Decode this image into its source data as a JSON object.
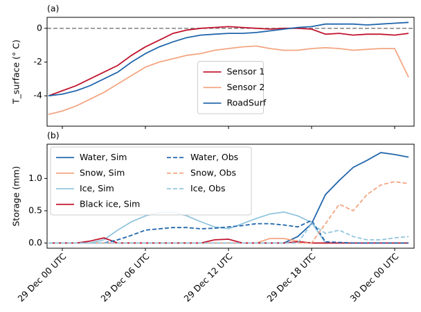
{
  "chart_data": [
    {
      "type": "line",
      "label": "(a)",
      "ylabel": "T_surface (° C)",
      "x": [
        -1,
        0,
        1,
        2,
        3,
        4,
        5,
        6,
        7,
        8,
        9,
        10,
        11,
        12,
        13,
        14,
        15,
        16,
        17,
        18,
        19,
        20,
        21,
        22,
        23,
        24,
        25
      ],
      "series": [
        {
          "name": "Sensor 1",
          "color": "#c1132d",
          "values": [
            -4.0,
            -3.7,
            -3.4,
            -3.0,
            -2.6,
            -2.2,
            -1.6,
            -1.1,
            -0.7,
            -0.3,
            -0.1,
            0.0,
            0.05,
            0.1,
            0.05,
            0.0,
            -0.05,
            0.0,
            0.0,
            -0.05,
            -0.35,
            -0.3,
            -0.4,
            -0.35,
            -0.35,
            -0.4,
            -0.3
          ]
        },
        {
          "name": "Sensor 2",
          "color": "#f4a582",
          "values": [
            -5.1,
            -4.9,
            -4.6,
            -4.2,
            -3.8,
            -3.3,
            -2.8,
            -2.3,
            -2.0,
            -1.8,
            -1.6,
            -1.5,
            -1.3,
            -1.2,
            -1.1,
            -1.05,
            -1.2,
            -1.3,
            -1.3,
            -1.2,
            -1.15,
            -1.2,
            -1.3,
            -1.25,
            -1.2,
            -1.2,
            -2.9
          ]
        },
        {
          "name": "RoadSurf",
          "color": "#2166ac",
          "values": [
            -4.0,
            -3.9,
            -3.7,
            -3.4,
            -3.0,
            -2.6,
            -2.0,
            -1.5,
            -1.1,
            -0.8,
            -0.55,
            -0.4,
            -0.35,
            -0.3,
            -0.3,
            -0.25,
            -0.15,
            -0.05,
            0.05,
            0.1,
            0.25,
            0.25,
            0.25,
            0.2,
            0.25,
            0.3,
            0.35
          ]
        }
      ],
      "hlines": [
        {
          "value": 0,
          "color": "#808080"
        }
      ],
      "xlim": [
        -1.1,
        25.4
      ],
      "ylim": [
        -5.8,
        0.65
      ],
      "yticks": [
        -4,
        -2,
        0
      ],
      "legend": "lower center",
      "sharex": true
    },
    {
      "type": "line",
      "label": "(b)",
      "ylabel": "Storage (mm)",
      "x": [
        -1,
        0,
        1,
        2,
        3,
        4,
        5,
        6,
        7,
        8,
        9,
        10,
        11,
        12,
        13,
        14,
        15,
        16,
        17,
        18,
        19,
        20,
        21,
        22,
        23,
        24,
        25
      ],
      "series": [
        {
          "name": "Water, Sim",
          "color": "#2166ac",
          "dash": false,
          "values": [
            0,
            0,
            0,
            0,
            0,
            0,
            0,
            0,
            0,
            0,
            0,
            0,
            0,
            0,
            0,
            0,
            0,
            0,
            0.1,
            0.3,
            0.75,
            0.97,
            1.17,
            1.28,
            1.4,
            1.37,
            1.33
          ]
        },
        {
          "name": "Snow, Sim",
          "color": "#f4a582",
          "dash": false,
          "values": [
            0,
            0,
            0,
            0,
            0,
            0,
            0,
            0,
            0,
            0,
            0,
            0,
            0,
            0,
            0,
            0,
            0.07,
            0.07,
            0.03,
            0,
            0,
            0,
            0,
            0,
            0,
            0,
            0
          ]
        },
        {
          "name": "Ice, Sim",
          "color": "#92c5de",
          "dash": false,
          "values": [
            0,
            0,
            0,
            0,
            0.05,
            0.2,
            0.33,
            0.42,
            0.47,
            0.48,
            0.42,
            0.33,
            0.25,
            0.22,
            0.3,
            0.38,
            0.45,
            0.48,
            0.42,
            0.32,
            0,
            0,
            0,
            0,
            0,
            0,
            0
          ]
        },
        {
          "name": "Black ice, Sim",
          "color": "#c1132d",
          "dash": false,
          "values": [
            0,
            0,
            0,
            0.03,
            0.08,
            0,
            0,
            0,
            0,
            0,
            0,
            0,
            0.05,
            0.06,
            0,
            0,
            0,
            0,
            0.02,
            0,
            0,
            0,
            0,
            0,
            0,
            0,
            0
          ]
        },
        {
          "name": "Water, Obs",
          "color": "#2166ac",
          "dash": true,
          "values": [
            0,
            0,
            0,
            0,
            0,
            0.05,
            0.12,
            0.2,
            0.22,
            0.24,
            0.24,
            0.22,
            0.23,
            0.25,
            0.27,
            0.3,
            0.3,
            0.28,
            0.25,
            0.35,
            0.02,
            0.01,
            0,
            0,
            0,
            0,
            0
          ]
        },
        {
          "name": "Snow, Obs",
          "color": "#f4a582",
          "dash": true,
          "values": [
            0,
            0,
            0,
            0,
            0,
            0,
            0,
            0,
            0,
            0,
            0,
            0,
            0,
            0,
            0,
            0,
            0,
            0,
            0,
            0,
            0.3,
            0.6,
            0.5,
            0.75,
            0.9,
            0.95,
            0.92
          ]
        },
        {
          "name": "Ice, Obs",
          "color": "#92c5de",
          "dash": true,
          "values": [
            0,
            0,
            0,
            0,
            0,
            0,
            0,
            0,
            0,
            0,
            0,
            0,
            0,
            0,
            0,
            0,
            0,
            0,
            0,
            0.3,
            0.15,
            0.2,
            0.1,
            0.05,
            0.05,
            0.08,
            0.1
          ]
        }
      ],
      "xlim": [
        -1.1,
        25.4
      ],
      "ylim": [
        -0.08,
        1.53
      ],
      "yticks": [
        {
          "value": 0,
          "label": "0.0"
        },
        {
          "value": 0.5,
          "label": "0.5"
        },
        {
          "value": 1,
          "label": "1.0"
        }
      ],
      "xticks": [
        {
          "value": 0,
          "label": "29 Dec 00 UTC"
        },
        {
          "value": 6,
          "label": "29 Dec 06 UTC"
        },
        {
          "value": 12,
          "label": "29 Dec 12 UTC"
        },
        {
          "value": 18,
          "label": "29 Dec 18 UTC"
        },
        {
          "value": 24,
          "label": "30 Dec 00 UTC"
        }
      ],
      "legend": "upper left",
      "legend_columns": 2
    }
  ]
}
